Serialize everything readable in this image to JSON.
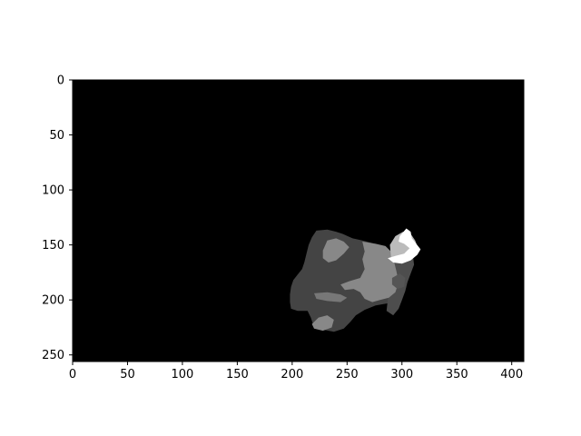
{
  "chart_data": {
    "type": "heatmap",
    "title": "",
    "xlabel": "",
    "ylabel": "",
    "xlim": [
      0,
      411
    ],
    "ylim": [
      256,
      0
    ],
    "x_ticks": [
      0,
      50,
      100,
      150,
      200,
      250,
      300,
      350,
      400
    ],
    "y_ticks": [
      0,
      50,
      100,
      150,
      200,
      250
    ],
    "grid": false,
    "legend": "none",
    "colormap": "gray",
    "background_value": 0,
    "regions": [
      {
        "shade": "#444444",
        "points": [
          [
            222,
            137
          ],
          [
            232,
            136
          ],
          [
            240,
            138
          ],
          [
            246,
            140
          ],
          [
            255,
            144
          ],
          [
            264,
            146
          ],
          [
            272,
            148
          ],
          [
            282,
            151
          ],
          [
            290,
            157
          ],
          [
            294,
            162
          ],
          [
            296,
            168
          ],
          [
            299,
            176
          ],
          [
            301,
            186
          ],
          [
            300,
            195
          ],
          [
            296,
            200
          ],
          [
            288,
            203
          ],
          [
            276,
            205
          ],
          [
            266,
            209
          ],
          [
            258,
            214
          ],
          [
            253,
            220
          ],
          [
            247,
            226
          ],
          [
            238,
            229
          ],
          [
            228,
            227
          ],
          [
            219,
            222
          ],
          [
            217,
            216
          ],
          [
            214,
            210
          ],
          [
            205,
            210
          ],
          [
            199,
            208
          ],
          [
            198,
            202
          ],
          [
            198,
            195
          ],
          [
            199,
            188
          ],
          [
            201,
            182
          ],
          [
            205,
            177
          ],
          [
            209,
            172
          ],
          [
            211,
            166
          ],
          [
            213,
            158
          ],
          [
            215,
            150
          ],
          [
            218,
            143
          ]
        ]
      },
      {
        "shade": "#4d4d4d",
        "points": [
          [
            290,
            160
          ],
          [
            300,
            158
          ],
          [
            310,
            160
          ],
          [
            311,
            168
          ],
          [
            308,
            176
          ],
          [
            305,
            184
          ],
          [
            303,
            192
          ],
          [
            300,
            200
          ],
          [
            297,
            208
          ],
          [
            292,
            214
          ],
          [
            286,
            210
          ],
          [
            287,
            200
          ],
          [
            290,
            190
          ],
          [
            292,
            180
          ],
          [
            292,
            170
          ]
        ]
      },
      {
        "shade": "#888888",
        "points": [
          [
            232,
            146
          ],
          [
            240,
            144
          ],
          [
            247,
            147
          ],
          [
            252,
            152
          ],
          [
            247,
            158
          ],
          [
            240,
            164
          ],
          [
            233,
            166
          ],
          [
            228,
            162
          ],
          [
            228,
            155
          ]
        ]
      },
      {
        "shade": "#888888",
        "points": [
          [
            264,
            147
          ],
          [
            276,
            149
          ],
          [
            285,
            151
          ],
          [
            292,
            158
          ],
          [
            293,
            166
          ],
          [
            295,
            174
          ],
          [
            297,
            184
          ],
          [
            294,
            193
          ],
          [
            288,
            198
          ],
          [
            280,
            200
          ],
          [
            273,
            202
          ],
          [
            266,
            199
          ],
          [
            262,
            193
          ],
          [
            256,
            190
          ],
          [
            248,
            191
          ],
          [
            244,
            186
          ],
          [
            252,
            183
          ],
          [
            262,
            180
          ],
          [
            266,
            172
          ],
          [
            264,
            163
          ],
          [
            266,
            156
          ]
        ]
      },
      {
        "shade": "#777777",
        "points": [
          [
            220,
            194
          ],
          [
            232,
            193
          ],
          [
            244,
            195
          ],
          [
            250,
            198
          ],
          [
            244,
            202
          ],
          [
            232,
            201
          ],
          [
            222,
            199
          ]
        ]
      },
      {
        "shade": "#888888",
        "points": [
          [
            218,
            222
          ],
          [
            224,
            216
          ],
          [
            232,
            214
          ],
          [
            238,
            218
          ],
          [
            236,
            225
          ],
          [
            228,
            228
          ],
          [
            220,
            226
          ]
        ]
      },
      {
        "shade": "#555555",
        "points": [
          [
            291,
            180
          ],
          [
            298,
            176
          ],
          [
            303,
            180
          ],
          [
            302,
            188
          ],
          [
            296,
            190
          ],
          [
            291,
            186
          ]
        ]
      },
      {
        "shade": "#bbbbbb",
        "points": [
          [
            289,
            150
          ],
          [
            294,
            142
          ],
          [
            301,
            138
          ],
          [
            308,
            140
          ],
          [
            312,
            146
          ],
          [
            314,
            151
          ],
          [
            310,
            157
          ],
          [
            303,
            161
          ],
          [
            296,
            163
          ],
          [
            290,
            161
          ]
        ]
      },
      {
        "shade": "#ffffff",
        "points": [
          [
            298,
            142
          ],
          [
            304,
            135
          ],
          [
            308,
            138
          ],
          [
            309,
            144
          ],
          [
            313,
            149
          ],
          [
            317,
            154
          ],
          [
            314,
            159
          ],
          [
            308,
            164
          ],
          [
            300,
            167
          ],
          [
            292,
            166
          ],
          [
            287,
            162
          ],
          [
            294,
            160
          ],
          [
            302,
            158
          ],
          [
            307,
            153
          ],
          [
            302,
            149
          ],
          [
            297,
            147
          ]
        ]
      }
    ]
  }
}
